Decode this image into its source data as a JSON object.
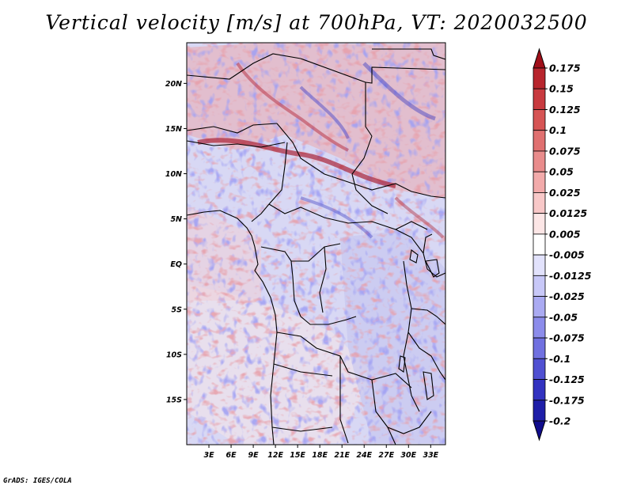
{
  "title": "Vertical velocity [m/s] at 700hPa, VT: 2020032500",
  "credit": "GrADS: IGES/COLA",
  "map": {
    "lat_labels": [
      "20N",
      "15N",
      "10N",
      "5N",
      "EQ",
      "5S",
      "10S",
      "15S"
    ],
    "lat_values": [
      20,
      15,
      10,
      5,
      0,
      -5,
      -10,
      -15
    ],
    "lon_labels": [
      "3E",
      "6E",
      "9E",
      "12E",
      "15E",
      "18E",
      "21E",
      "24E",
      "27E",
      "30E",
      "33E"
    ],
    "lon_values": [
      3,
      6,
      9,
      12,
      15,
      18,
      21,
      24,
      27,
      30,
      33
    ],
    "lat_range": [
      -20,
      24.5
    ],
    "lon_range": [
      0,
      35
    ]
  },
  "colorbar": {
    "labels": [
      "0.175",
      "0.15",
      "0.125",
      "0.1",
      "0.075",
      "0.05",
      "0.025",
      "0.0125",
      "0.005",
      "-0.005",
      "-0.0125",
      "-0.025",
      "-0.05",
      "-0.075",
      "-0.1",
      "-0.125",
      "-0.175",
      "-0.2"
    ],
    "colors": [
      "#a00f19",
      "#b8252d",
      "#c83a3f",
      "#d65454",
      "#e07070",
      "#e98c8c",
      "#f2aaaa",
      "#f8c8c8",
      "#fce6e6",
      "#ffffff",
      "#e2e2fc",
      "#c8c8f8",
      "#aaaaf2",
      "#8c8ceb",
      "#7070e0",
      "#5050d2",
      "#3232c0",
      "#1e1ea8",
      "#100c8c"
    ]
  }
}
